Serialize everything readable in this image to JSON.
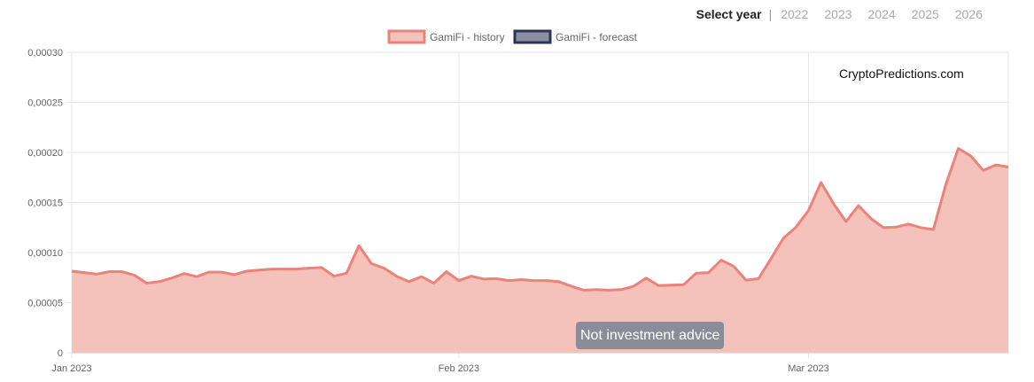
{
  "year_selector": {
    "label": "Select year",
    "separator": "|",
    "years": [
      "2022",
      "2023",
      "2024",
      "2025",
      "2026"
    ]
  },
  "legend": [
    {
      "label": "GamiFi - history",
      "fill": "#f5c1bb",
      "stroke": "#ea8379"
    },
    {
      "label": "GamiFi - forecast",
      "fill": "#8c8fa2",
      "stroke": "#2c3557"
    }
  ],
  "watermark": "CryptoPredictions.com",
  "disclaimer": "Not investment advice",
  "colors": {
    "history_fill": "#f5c1bb",
    "history_line": "#ea8379",
    "grid": "#e6e6e6",
    "axis_text": "#666666"
  },
  "chart_data": {
    "type": "area",
    "title": "",
    "xlabel": "",
    "ylabel": "",
    "x_ticks": [
      {
        "label": "Jan 2023",
        "day": 0
      },
      {
        "label": "Feb 2023",
        "day": 31
      },
      {
        "label": "Mar 2023",
        "day": 59
      }
    ],
    "y_ticks": [
      "0",
      "0,00005",
      "0,00010",
      "0,00015",
      "0,00020",
      "0,00025",
      "0,00030"
    ],
    "ylim": [
      0,
      0.0003
    ],
    "xlim_days": [
      0,
      75
    ],
    "grid": true,
    "legend_position": "top-center",
    "series": [
      {
        "name": "GamiFi - history",
        "values": [
          8.15e-05,
          8e-05,
          7.85e-05,
          8.1e-05,
          8.1e-05,
          7.75e-05,
          6.95e-05,
          7.1e-05,
          7.45e-05,
          7.9e-05,
          7.6e-05,
          8.05e-05,
          8.05e-05,
          7.8e-05,
          8.15e-05,
          8.25e-05,
          8.35e-05,
          8.35e-05,
          8.35e-05,
          8.45e-05,
          8.5e-05,
          7.65e-05,
          7.95e-05,
          0.000107,
          8.9e-05,
          8.45e-05,
          7.65e-05,
          7.1e-05,
          7.6e-05,
          6.95e-05,
          8.1e-05,
          7.2e-05,
          7.65e-05,
          7.35e-05,
          7.4e-05,
          7.2e-05,
          7.3e-05,
          7.2e-05,
          7.2e-05,
          7.1e-05,
          6.65e-05,
          6.25e-05,
          6.3e-05,
          6.25e-05,
          6.3e-05,
          6.65e-05,
          7.45e-05,
          6.7e-05,
          6.75e-05,
          6.8e-05,
          7.95e-05,
          8e-05,
          9.25e-05,
          8.65e-05,
          7.25e-05,
          7.4e-05,
          9.4e-05,
          0.0001145,
          0.0001255,
          0.000142,
          0.00017,
          0.000149,
          0.000131,
          0.000147,
          0.000134,
          0.000125,
          0.0001255,
          0.0001285,
          0.000125,
          0.000123,
          0.000168,
          0.000204,
          0.0001965,
          0.000182,
          0.0001875,
          0.0001855
        ]
      },
      {
        "name": "GamiFi - forecast",
        "values": []
      }
    ]
  }
}
